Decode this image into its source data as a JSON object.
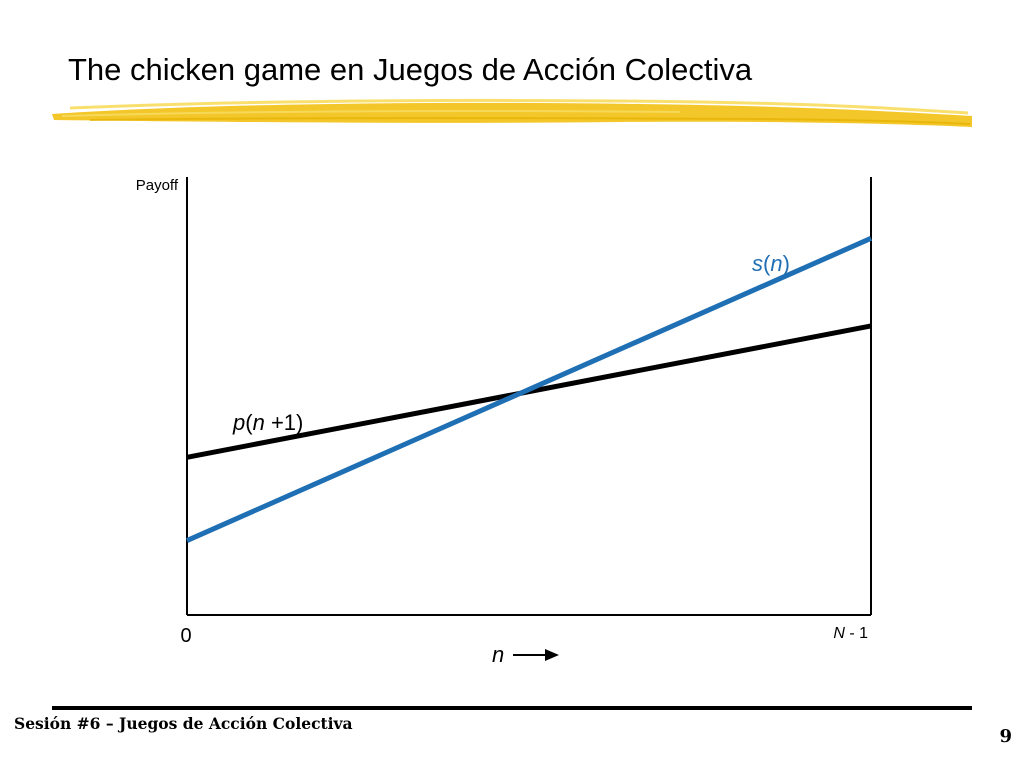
{
  "slide": {
    "title": "The chicken game en Juegos de Acción Colectiva",
    "footer": "Sesión #6 – Juegos de Acción Colectiva",
    "page_number": "9"
  },
  "colors": {
    "highlight": "#f2c41e",
    "s_line": "#1f6fb4",
    "p_line": "#000000",
    "axis": "#000000"
  },
  "chart_data": {
    "type": "line",
    "ylabel": "Payoff",
    "x_tick_labels": {
      "start": "0",
      "end": "N - 1"
    },
    "xlabel": "n",
    "xlim": [
      0,
      1
    ],
    "ylim": [
      0,
      1
    ],
    "series": [
      {
        "name": "p(n +1)",
        "x": [
          0,
          1
        ],
        "y": [
          0.36,
          0.66
        ]
      },
      {
        "name": "s(n)",
        "x": [
          0,
          1
        ],
        "y": [
          0.17,
          0.86
        ]
      }
    ]
  }
}
